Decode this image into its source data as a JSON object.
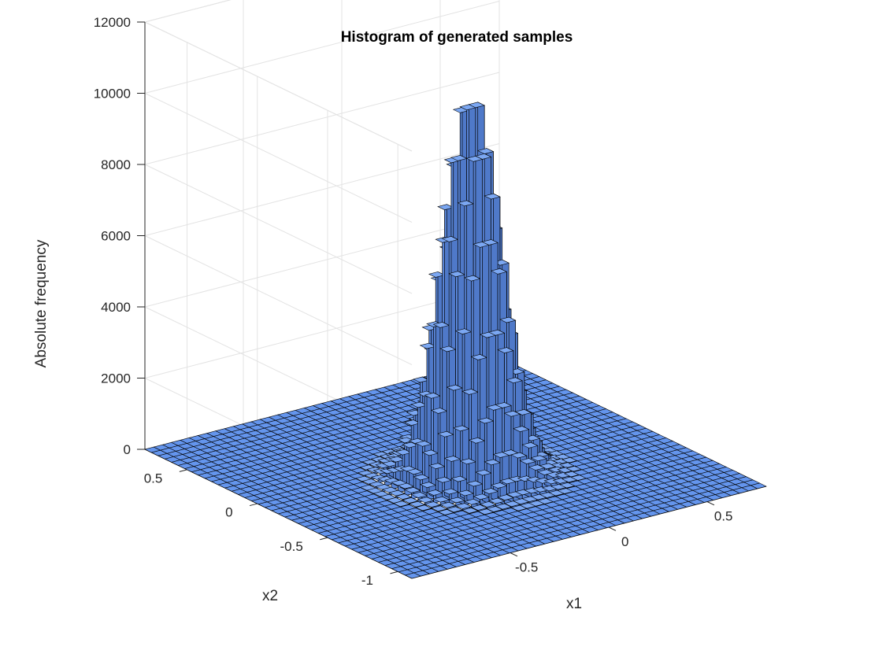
{
  "chart_data": {
    "type": "bar3",
    "title": "Histogram of generated samples",
    "xlabel": "x1",
    "ylabel": "x2",
    "zlabel": "Absolute frequency",
    "x_ticks": [
      "-0.5",
      "0",
      "0.5"
    ],
    "y_ticks": [
      "-1",
      "-0.5",
      "0",
      "0.5"
    ],
    "z_ticks": [
      "0",
      "2000",
      "4000",
      "6000",
      "8000",
      "10000",
      "12000"
    ],
    "xlim": [
      -1,
      0.8
    ],
    "ylim": [
      -1.1,
      0.8
    ],
    "zlim": [
      0,
      12000
    ],
    "bins": 40,
    "distribution": "bivariate normal histogram",
    "peak_center": [
      -0.1,
      -0.25
    ],
    "peak_value": 10700,
    "spread": 0.12,
    "grid": true,
    "bar_color": "#6495ED",
    "edge_color": "#000000"
  }
}
